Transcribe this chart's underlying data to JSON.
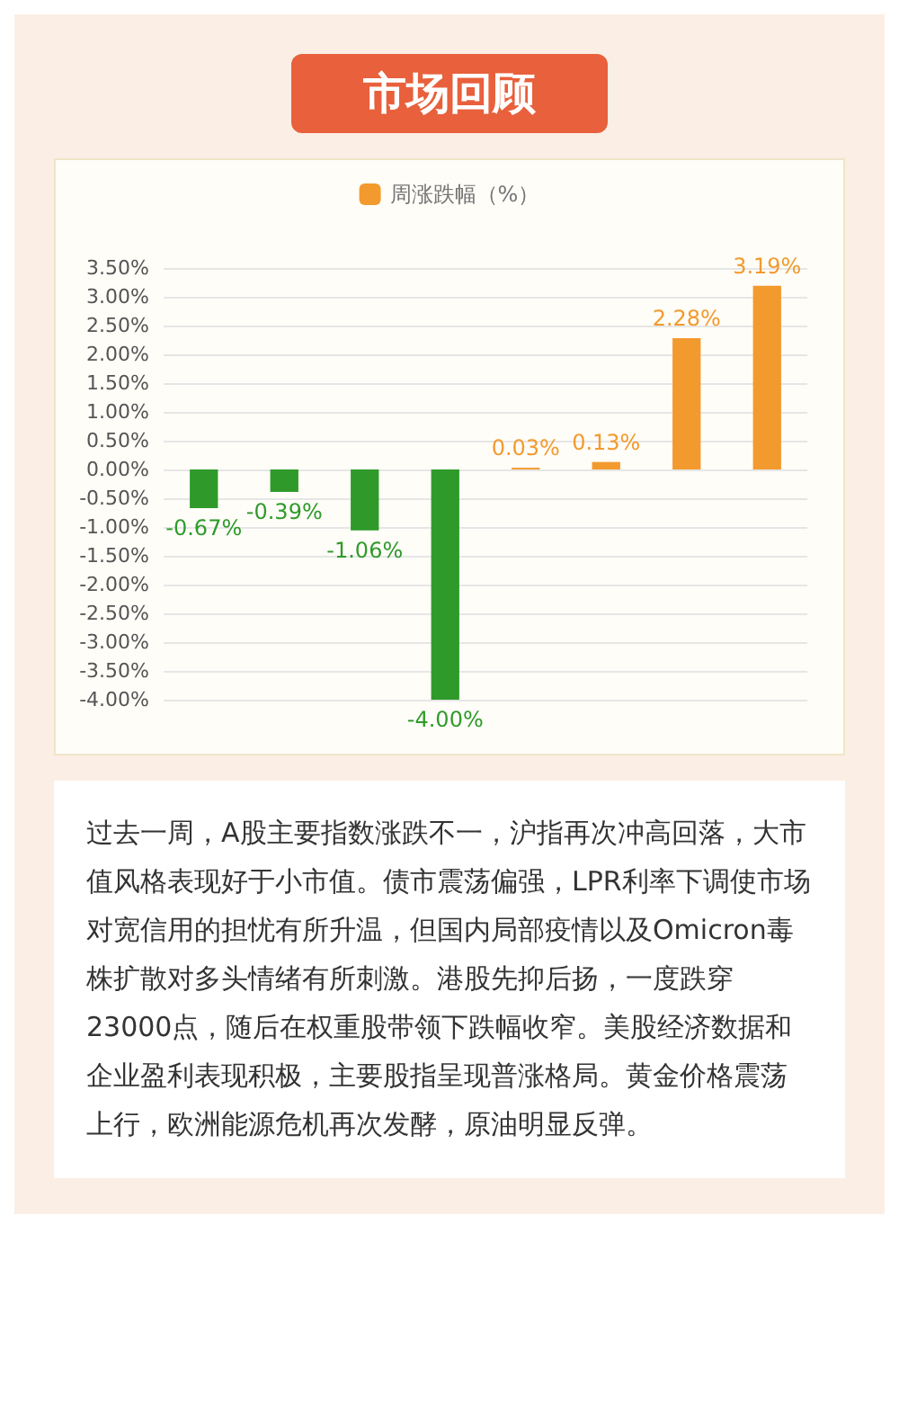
{
  "chart_data": {
    "type": "bar",
    "title": "市场回顾",
    "categories": [
      null,
      null,
      null,
      null,
      null,
      null,
      null,
      null
    ],
    "series": [
      {
        "name": "周涨跌幅（%）",
        "color": "#f39a2e",
        "values": [
          -0.67,
          -0.39,
          -1.06,
          -4.0,
          0.03,
          0.13,
          2.28,
          3.19
        ],
        "colors": [
          "#2f9a2a",
          "#2f9a2a",
          "#2f9a2a",
          "#2f9a2a",
          "#f39a2e",
          "#f39a2e",
          "#f39a2e",
          "#f39a2e"
        ],
        "value_labels": [
          "-0.67%",
          "-0.39%",
          "-1.06%",
          "-4.00%",
          "0.03%",
          "0.13%",
          "2.28%",
          "3.19%"
        ]
      }
    ],
    "ylim": [
      -4,
      3.5
    ],
    "yticks": [
      {
        "value": -4,
        "label": "-4.00%"
      },
      {
        "value": -3.5,
        "label": "-3.50%"
      },
      {
        "value": -3,
        "label": "-3.00%"
      },
      {
        "value": -2.5,
        "label": "-2.50%"
      },
      {
        "value": -2,
        "label": "-2.00%"
      },
      {
        "value": -1.5,
        "label": "-1.50%"
      },
      {
        "value": -1,
        "label": "-1.00%"
      },
      {
        "value": -0.5,
        "label": "-0.50%"
      },
      {
        "value": 0,
        "label": "0.00%"
      },
      {
        "value": 0.5,
        "label": "0.50%"
      },
      {
        "value": 1,
        "label": "1.00%"
      },
      {
        "value": 1.5,
        "label": "1.50%"
      },
      {
        "value": 2,
        "label": "2.00%"
      },
      {
        "value": 2.5,
        "label": "2.50%"
      },
      {
        "value": 3,
        "label": "3.00%"
      },
      {
        "value": 3.5,
        "label": "3.50%"
      }
    ],
    "grid": "y",
    "legend": "top",
    "annotations": [
      "过去一周，A股主要指数涨跌不一，沪指再次冲高回落，大市值风格表现好于小市值。债市震荡偏强，LPR利率下调使市场对宽信用的担忧有所升温，但国内局部疫情以及Omicron毒株扩散对多头情绪有所刺激。港股先抑后扬，一度跌穿23000点，随后在权重股带领下跌幅收窄。美股经济数据和企业盈利表现积极，主要股指呈现普涨格局。黄金价格震荡上行，欧洲能源危机再次发酵，原油明显反弹。"
    ]
  }
}
